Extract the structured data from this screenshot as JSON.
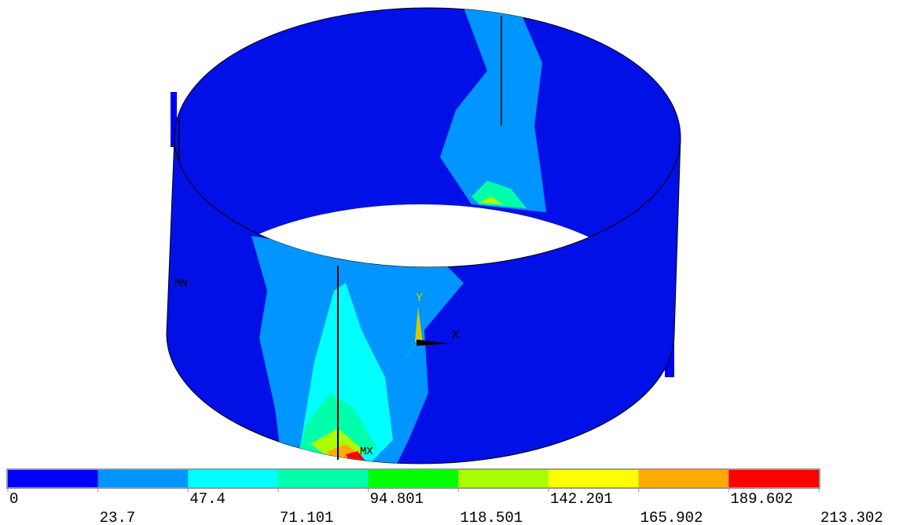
{
  "plot": {
    "min_label": "MN",
    "max_label": "MX",
    "axis_x": "X",
    "axis_y": "Y"
  },
  "legend": {
    "colors": [
      "#0000ff",
      "#0095ff",
      "#00ffff",
      "#00ffaa",
      "#00ff00",
      "#aaff00",
      "#ffff00",
      "#ffaa00",
      "#ff0000"
    ],
    "levels": [
      0,
      23.7,
      47.4,
      71.101,
      94.801,
      118.501,
      142.201,
      165.902,
      189.602,
      213.302
    ]
  }
}
